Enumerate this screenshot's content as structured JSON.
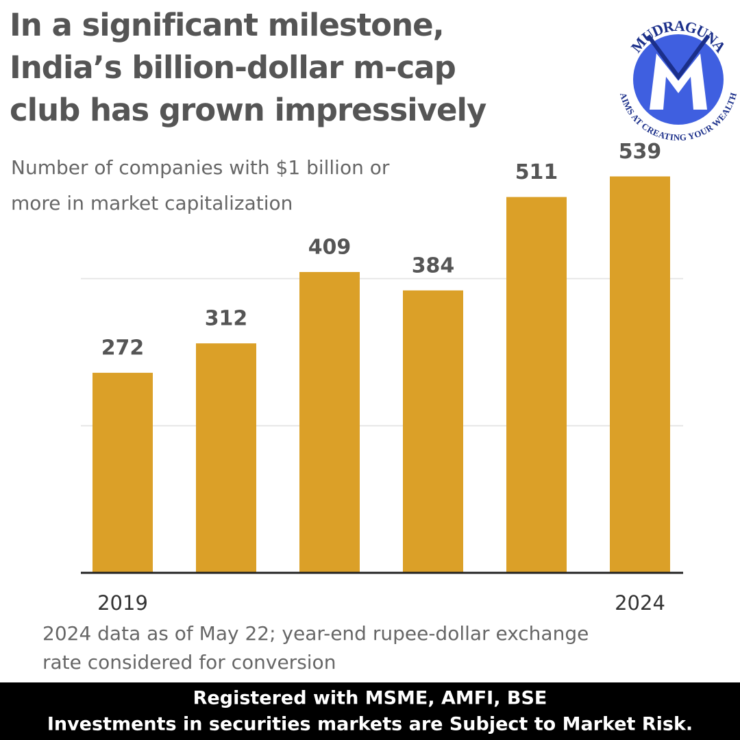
{
  "chart_data": {
    "type": "bar",
    "title": [
      "In a significant milestone,",
      "India’s billion-dollar m-cap",
      "club has grown impressively"
    ],
    "subtitle": [
      "Number of companies with $1 billion or",
      "more in market capitalization"
    ],
    "note": [
      "2024 data as of May 22; year-end rupee-dollar exchange",
      "rate considered for conversion"
    ],
    "categories": [
      "2019",
      null,
      null,
      null,
      null,
      "2024"
    ],
    "values": [
      272,
      312,
      409,
      384,
      511,
      539
    ],
    "color": "#dba028",
    "ylim": [
      0,
      600
    ],
    "yticks": [
      0,
      200,
      400
    ],
    "grid": true
  },
  "logo": {
    "name": "MUDRAGUNA",
    "tagline": "AIMS AT CREATING YOUR WEALTH"
  },
  "footer": [
    "Registered with MSME, AMFI, BSE",
    "Investments in securities markets are Subject to Market Risk."
  ]
}
